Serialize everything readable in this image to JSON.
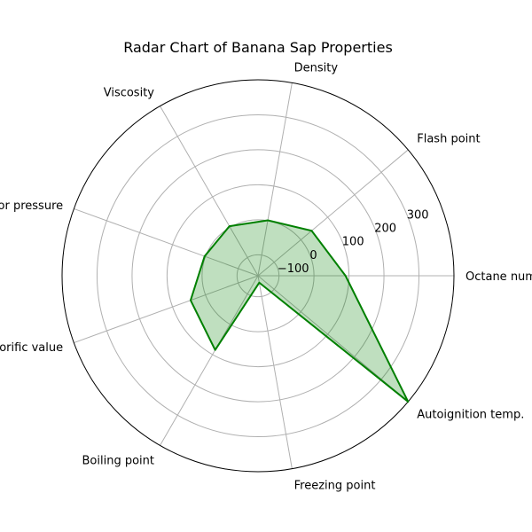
{
  "chart_data": {
    "type": "radar",
    "title": "Radar Chart of Banana Sap Properties",
    "categories": [
      "Octane number",
      "Flash point",
      "Density",
      "Viscosity",
      "Vapor pressure",
      "Calorific value",
      "Boiling point",
      "Freezing point",
      "Autoignition temp."
    ],
    "series": [
      {
        "values": [
          90,
          40,
          0.9,
          3.5,
          2.5,
          45,
          85,
          -140,
          400
        ]
      }
    ],
    "rlim": [
      -160,
      400
    ],
    "r_ticks": [
      -100,
      0,
      100,
      200,
      300
    ],
    "grid": true,
    "colors": {
      "line": "#008000",
      "fill": "#008000",
      "fill_opacity": 0.25,
      "grid": "#b0b0b0",
      "outer_ring": "#000000"
    }
  }
}
